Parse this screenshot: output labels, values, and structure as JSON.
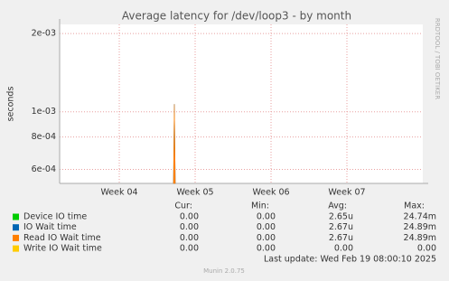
{
  "chart_data": {
    "type": "line",
    "title": "Average latency for /dev/loop3 - by month",
    "ylabel": "seconds",
    "side_note": "RRDTOOL / TOBI OETIKER",
    "log_y": true,
    "grid": true,
    "x": [
      4.726
    ],
    "xlim": [
      3.214,
      8.0
    ],
    "xticks": [
      {
        "value": 4,
        "label": "Week 04"
      },
      {
        "value": 5,
        "label": "Week 05"
      },
      {
        "value": 6,
        "label": "Week 06"
      },
      {
        "value": 7,
        "label": "Week 07"
      }
    ],
    "ylim": [
      0.00053,
      0.00217
    ],
    "yticks": [
      {
        "value": 0.0006,
        "label": "6e-04"
      },
      {
        "value": 0.0008,
        "label": "8e-04"
      },
      {
        "value": 0.001,
        "label": "1e-03"
      },
      {
        "value": 0.002,
        "label": "2e-03"
      }
    ],
    "series": [
      {
        "name": "Device IO time",
        "color": "#00cc00",
        "values": [
          null
        ],
        "stats": [
          "0.00",
          "0.00",
          "2.65u",
          "24.74m"
        ]
      },
      {
        "name": "IO Wait time",
        "color": "#0066b3",
        "values": [
          0.00107
        ],
        "stats": [
          "0.00",
          "0.00",
          "2.67u",
          "24.89m"
        ]
      },
      {
        "name": "Read IO Wait time",
        "color": "#ff8000",
        "values": [
          0.00107
        ],
        "stats": [
          "0.00",
          "0.00",
          "2.67u",
          "24.89m"
        ]
      },
      {
        "name": "Write IO Wait time",
        "color": "#ffcc00",
        "values": [
          null
        ],
        "stats": [
          "0.00",
          "0.00",
          "0.00",
          "0.00"
        ]
      }
    ],
    "stat_headers": [
      "Cur:",
      "Min:",
      "Avg:",
      "Max:"
    ],
    "last_update": "Last update: Wed Feb 19 08:00:10 2025",
    "footer": "Munin 2.0.75"
  }
}
